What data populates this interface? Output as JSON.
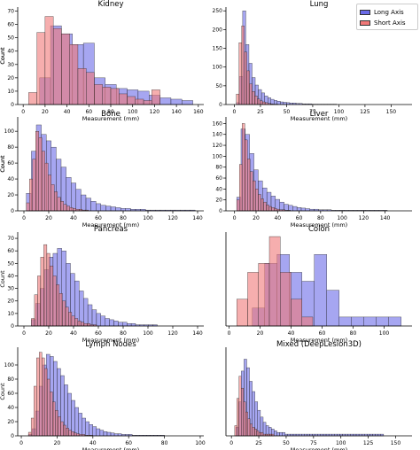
{
  "colors": {
    "long_axis": "#6A6AE8",
    "short_axis": "#F07878",
    "overlap": "#A0306A"
  },
  "legend": {
    "long_axis": "Long Axis",
    "short_axis": "Short Axis",
    "placement": "top-right"
  },
  "chart_data": [
    {
      "type": "bar",
      "title": "Kidney",
      "xlabel": "Measurement (mm)",
      "ylabel": "Count",
      "xlim": [
        -5,
        165
      ],
      "ylim": [
        0,
        73
      ],
      "xticks": [
        0,
        20,
        40,
        60,
        80,
        100,
        120,
        140,
        160
      ],
      "yticks": [
        0,
        10,
        20,
        30,
        40,
        50,
        60,
        70
      ],
      "series": [
        {
          "name": "Long Axis",
          "bin_start": 15,
          "bin_width": 10,
          "values": [
            20,
            59,
            53,
            45,
            46,
            20,
            15,
            12,
            11,
            10,
            7,
            5,
            4,
            3
          ]
        },
        {
          "name": "Short Axis",
          "bin_start": 5,
          "bin_width": 7.5,
          "values": [
            9,
            54,
            66,
            57,
            53,
            45,
            27,
            24,
            15,
            13,
            12,
            8,
            6,
            4,
            3,
            11
          ]
        }
      ]
    },
    {
      "type": "bar",
      "title": "Lung",
      "xlabel": "Measurement (mm)",
      "ylabel": "Count",
      "xlim": [
        -8,
        170
      ],
      "ylim": [
        0,
        260
      ],
      "xticks": [
        0,
        25,
        50,
        75,
        100,
        125,
        150
      ],
      "yticks": [
        0,
        50,
        100,
        150,
        200,
        250
      ],
      "series": [
        {
          "name": "Long Axis",
          "bin_start": 2,
          "bin_width": 3,
          "values": [
            5,
            75,
            250,
            160,
            110,
            72,
            52,
            40,
            31,
            23,
            18,
            14,
            11,
            9,
            7,
            6,
            5,
            4,
            4,
            3,
            3,
            2,
            2,
            2,
            1,
            1,
            1,
            1,
            1,
            1,
            1,
            1
          ]
        },
        {
          "name": "Short Axis",
          "bin_start": 2,
          "bin_width": 2.5,
          "values": [
            28,
            165,
            210,
            140,
            90,
            55,
            35,
            23,
            15,
            10,
            7,
            5,
            3,
            2,
            1,
            1
          ]
        }
      ]
    },
    {
      "type": "bar",
      "title": "Bone",
      "xlabel": "Measurement (mm)",
      "ylabel": "Count",
      "xlim": [
        -5,
        145
      ],
      "ylim": [
        0,
        118
      ],
      "xticks": [
        0,
        20,
        40,
        60,
        80,
        100,
        120,
        140
      ],
      "yticks": [
        0,
        20,
        40,
        60,
        80,
        100
      ],
      "series": [
        {
          "name": "Long Axis",
          "bin_start": 2,
          "bin_width": 4,
          "values": [
            22,
            75,
            108,
            96,
            88,
            80,
            65,
            55,
            42,
            35,
            27,
            20,
            16,
            12,
            9,
            7,
            6,
            5,
            4,
            3,
            3,
            2,
            2,
            2,
            1,
            1,
            1,
            1,
            1,
            1,
            1,
            1,
            1,
            1
          ]
        },
        {
          "name": "Short Axis",
          "bin_start": 2,
          "bin_width": 2.5,
          "values": [
            10,
            40,
            65,
            100,
            92,
            75,
            60,
            45,
            33,
            24,
            17,
            12,
            8,
            6,
            4,
            3,
            2,
            2,
            1,
            1
          ]
        }
      ]
    },
    {
      "type": "bar",
      "title": "Liver",
      "xlabel": "Measurement (mm)",
      "ylabel": "Count",
      "xlim": [
        -8,
        165
      ],
      "ylim": [
        0,
        172
      ],
      "xticks": [
        0,
        20,
        40,
        60,
        80,
        100,
        120,
        140
      ],
      "yticks": [
        0,
        20,
        40,
        60,
        80,
        100,
        120,
        140,
        160
      ],
      "series": [
        {
          "name": "Long Axis",
          "bin_start": 2,
          "bin_width": 4,
          "values": [
            25,
            150,
            140,
            105,
            75,
            55,
            42,
            34,
            27,
            21,
            16,
            12,
            10,
            8,
            6,
            5,
            4,
            3,
            3,
            2,
            2,
            2,
            1,
            1,
            1,
            1,
            1,
            1,
            1,
            1,
            1,
            1,
            1,
            1,
            1
          ]
        },
        {
          "name": "Short Axis",
          "bin_start": 2,
          "bin_width": 2.5,
          "values": [
            20,
            85,
            160,
            130,
            95,
            72,
            55,
            40,
            30,
            22,
            16,
            11,
            8,
            6,
            4,
            3,
            2,
            2,
            1,
            1
          ]
        }
      ]
    },
    {
      "type": "bar",
      "title": "Pancreas",
      "xlabel": "Measurement (mm)",
      "ylabel": "Count",
      "xlim": [
        -5,
        145
      ],
      "ylim": [
        0,
        75
      ],
      "xticks": [
        0,
        20,
        40,
        60,
        80,
        100,
        120,
        140
      ],
      "yticks": [
        0,
        10,
        20,
        30,
        40,
        50,
        60,
        70
      ],
      "series": [
        {
          "name": "Long Axis",
          "bin_start": 6,
          "bin_width": 3.5,
          "values": [
            5,
            18,
            30,
            45,
            55,
            58,
            62,
            60,
            50,
            42,
            36,
            28,
            22,
            17,
            13,
            10,
            8,
            6,
            5,
            4,
            3,
            3,
            2,
            2,
            1,
            1,
            1,
            1,
            1
          ]
        },
        {
          "name": "Short Axis",
          "bin_start": 6,
          "bin_width": 2.5,
          "values": [
            6,
            25,
            40,
            55,
            65,
            58,
            48,
            40,
            33,
            26,
            20,
            15,
            11,
            8,
            6,
            4,
            3,
            2,
            2,
            1,
            1
          ]
        }
      ]
    },
    {
      "type": "bar",
      "title": "Colon",
      "xlabel": "Measurement (mm)",
      "ylabel": "",
      "xlim": [
        -2,
        118
      ],
      "ylim": [
        0,
        10.5
      ],
      "xticks": [
        0,
        20,
        40,
        60,
        80,
        100
      ],
      "yticks": [],
      "series": [
        {
          "name": "Long Axis",
          "bin_start": 15,
          "bin_width": 8,
          "values": [
            2,
            7,
            8,
            6,
            5,
            8,
            4,
            1,
            1,
            1,
            1,
            1
          ]
        },
        {
          "name": "Short Axis",
          "bin_start": 5,
          "bin_width": 7,
          "values": [
            3,
            6,
            7,
            10,
            6,
            3,
            1
          ]
        }
      ]
    },
    {
      "type": "bar",
      "title": "Lymph Nodes",
      "xlabel": "Measurement (mm)",
      "ylabel": "Count",
      "xlim": [
        -2,
        102
      ],
      "ylim": [
        0,
        125
      ],
      "xticks": [
        0,
        20,
        40,
        60,
        80,
        100
      ],
      "yticks": [
        0,
        20,
        40,
        60,
        80,
        100
      ],
      "series": [
        {
          "name": "Long Axis",
          "bin_start": 4,
          "bin_width": 2,
          "values": [
            2,
            10,
            35,
            70,
            100,
            115,
            112,
            105,
            95,
            85,
            72,
            60,
            50,
            40,
            32,
            25,
            20,
            16,
            13,
            10,
            8,
            6,
            5,
            4,
            3,
            3,
            2,
            2,
            2,
            1,
            1,
            1,
            1,
            1,
            1,
            1,
            1,
            1
          ]
        },
        {
          "name": "Short Axis",
          "bin_start": 4,
          "bin_width": 1.5,
          "values": [
            5,
            25,
            70,
            110,
            118,
            110,
            95,
            80,
            62,
            48,
            36,
            27,
            20,
            15,
            11,
            8,
            6,
            4,
            3,
            2,
            2,
            1,
            1,
            1
          ]
        }
      ]
    },
    {
      "type": "bar",
      "title": "Mixed (DeepLesion3D)",
      "xlabel": "Measurement (mm)",
      "ylabel": "",
      "xlim": [
        -5,
        165
      ],
      "ylim": [
        0,
        52
      ],
      "xticks": [
        0,
        25,
        50,
        75,
        100,
        125,
        150
      ],
      "yticks": [],
      "series": [
        {
          "name": "Long Axis",
          "bin_start": 4,
          "bin_width": 2.5,
          "values": [
            5,
            20,
            38,
            45,
            40,
            32,
            26,
            20,
            15,
            11,
            8,
            6,
            5,
            4,
            3,
            2,
            2,
            2,
            1,
            1,
            1,
            1,
            1,
            1,
            1,
            1,
            1,
            1,
            1,
            1,
            1,
            1,
            1,
            1,
            1,
            1,
            1,
            1,
            1,
            1,
            1,
            1,
            1,
            1,
            1,
            1,
            1,
            1,
            1,
            1,
            1,
            1,
            1,
            1
          ]
        },
        {
          "name": "Short Axis",
          "bin_start": 3,
          "bin_width": 2,
          "values": [
            6,
            22,
            35,
            28,
            20,
            14,
            10,
            7,
            5,
            4,
            3,
            2,
            2,
            1,
            1,
            1,
            1,
            1
          ]
        }
      ]
    }
  ]
}
